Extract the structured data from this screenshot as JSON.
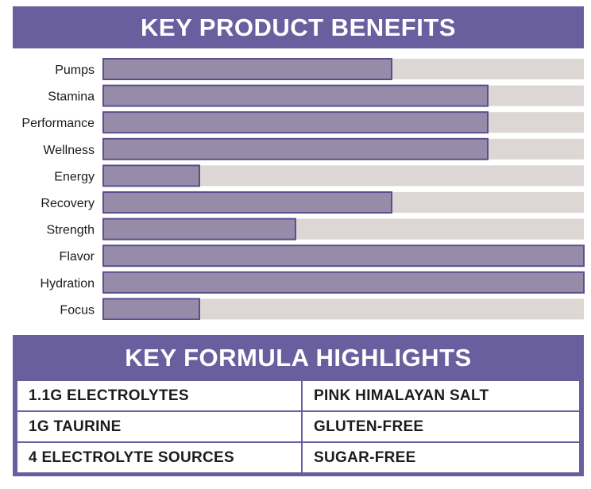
{
  "benefits": {
    "title": "KEY PRODUCT BENEFITS"
  },
  "chart_data": {
    "type": "bar",
    "orientation": "horizontal",
    "title": "KEY PRODUCT BENEFITS",
    "categories": [
      "Pumps",
      "Stamina",
      "Performance",
      "Wellness",
      "Energy",
      "Recovery",
      "Strength",
      "Flavor",
      "Hydration",
      "Focus"
    ],
    "values": [
      0.6,
      0.8,
      0.8,
      0.8,
      0.2,
      0.6,
      0.4,
      1.0,
      1.0,
      0.2
    ],
    "xlim": [
      0,
      1
    ],
    "grid": false,
    "legend": "none"
  },
  "highlights": {
    "title": "KEY FORMULA HIGHLIGHTS",
    "rows": [
      [
        "1.1G ELECTROLYTES",
        "PINK HIMALAYAN SALT"
      ],
      [
        "1G TAURINE",
        "GLUTEN-FREE"
      ],
      [
        "4 ELECTROLYTE SOURCES",
        "SUGAR-FREE"
      ]
    ]
  },
  "colors": {
    "banner": "#6a5f9e",
    "bar_fill": "#968ca9",
    "bar_edge": "#5a4f8c",
    "track": "#dcd6d4"
  }
}
